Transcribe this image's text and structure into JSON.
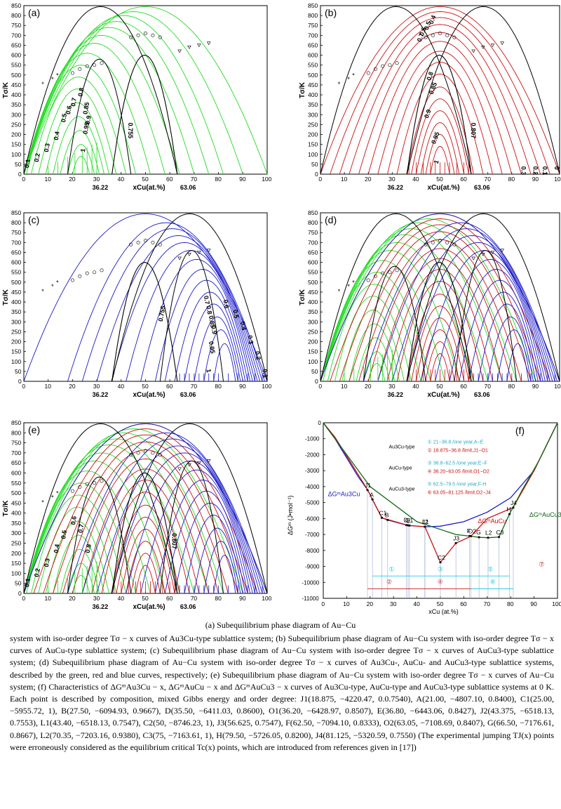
{
  "figure": {
    "panels": [
      {
        "label": "(a)",
        "ylabel": "Tσ/K"
      },
      {
        "label": "(b)",
        "ylabel": "Tσ/K"
      },
      {
        "label": "(c)",
        "ylabel": "Tσ/K"
      },
      {
        "label": "(d)",
        "ylabel": "Tσ/K"
      },
      {
        "label": "(e)",
        "ylabel": "Tσ/K"
      }
    ],
    "xlabel": "xCu(at.%)",
    "mark_labels": [
      "36.22",
      "63.06"
    ],
    "x_ticks": [
      "0",
      "10",
      "20",
      "30",
      "40",
      "50",
      "60",
      "70",
      "80",
      "90",
      "100"
    ],
    "y_ticks": [
      "0",
      "50",
      "100",
      "150",
      "200",
      "250",
      "300",
      "350",
      "400",
      "450",
      "500",
      "550",
      "600",
      "650",
      "700",
      "750",
      "800",
      "850"
    ],
    "colors": {
      "au3cu": "#22dd22",
      "aucu": "#cc1111",
      "aucu3": "#1a1acc",
      "black": "#000000"
    },
    "iso_labels_a": [
      "0.1",
      "0.2",
      "0.3",
      "0.4",
      "0.5",
      "0.6",
      "0.7",
      "0.8",
      "0.85",
      "0.9",
      "0.95",
      "1",
      "0.755"
    ],
    "iso_labels_b": [
      "0.4",
      "0.5",
      "0.6",
      "0.7",
      "0.8",
      "0.85",
      "0.9",
      "0.95",
      "1",
      "0.807",
      "0.3",
      "0.2",
      "0.1",
      "0"
    ],
    "iso_labels_c": [
      "0.755",
      "0.7",
      "0.8",
      "0.85",
      "0.9",
      "0.95",
      "1",
      "0.6",
      "0.5",
      "0.4",
      "0.3",
      "0.2",
      "0.1"
    ],
    "panel_f": {
      "label": "(f)",
      "ylabel": "ΔGᵐ (J•mol⁻¹)",
      "xlabel": "xCu (at.%)",
      "y_ticks": [
        "0",
        "-1000",
        "-2000",
        "-3000",
        "-4000",
        "-5000",
        "-6000",
        "-7000",
        "-8000",
        "-9000",
        "-10000",
        "-11000"
      ],
      "x_ticks": [
        "0",
        "10",
        "20",
        "30",
        "40",
        "50",
        "60",
        "70",
        "80",
        "90",
        "100"
      ],
      "curve_labels": [
        "ΔGᵐAu3Cu",
        "ΔGᵐAuCu",
        "ΔGᵐAuCu3"
      ],
      "legend": [
        {
          "type": "Au3Cu-type",
          "items": [
            "① 21−36.8 /one year,A−E",
            "② 18.875−36.8 /limit,J1−O1"
          ]
        },
        {
          "type": "AuCu-type",
          "items": [
            "③ 36.8−62.5 /one year,E−F",
            "④ 36.20−63.05 /limit,O1−O2"
          ]
        },
        {
          "type": "AuCu3-type",
          "items": [
            "⑤ 62.5−79.5 /one year,F-H",
            "⑥ 63.05−81.125 /limit,O2−J4"
          ]
        }
      ],
      "points": [
        {
          "name": "J1",
          "x": 18.875,
          "y": -4220.47
        },
        {
          "name": "A",
          "x": 21.0,
          "y": -4807.1
        },
        {
          "name": "C1",
          "x": 25.0,
          "y": -5955.72
        },
        {
          "name": "B",
          "x": 27.5,
          "y": -6094.93
        },
        {
          "name": "D",
          "x": 35.5,
          "y": -6411.03
        },
        {
          "name": "O1",
          "x": 36.2,
          "y": -6428.97
        },
        {
          "name": "E",
          "x": 36.8,
          "y": -6443.06
        },
        {
          "name": "J2",
          "x": 43.375,
          "y": -6518.13
        },
        {
          "name": "L1",
          "x": 43.4,
          "y": -6518.13
        },
        {
          "name": "C2",
          "x": 50.0,
          "y": -8746.23
        },
        {
          "name": "J3",
          "x": 56.625,
          "y": -7547.0
        },
        {
          "name": "F",
          "x": 62.5,
          "y": -7094.1
        },
        {
          "name": "O2",
          "x": 63.05,
          "y": -7108.69
        },
        {
          "name": "G",
          "x": 66.5,
          "y": -7176.61
        },
        {
          "name": "L2",
          "x": 70.35,
          "y": -7203.16
        },
        {
          "name": "C3",
          "x": 75.0,
          "y": -7163.61
        },
        {
          "name": "H",
          "x": 79.5,
          "y": -5726.05
        },
        {
          "name": "J4",
          "x": 81.125,
          "y": -5320.59
        }
      ],
      "range_labels": [
        "①",
        "②",
        "③",
        "④",
        "⑤",
        "⑥",
        "⑦"
      ]
    }
  },
  "caption": {
    "title": "(a) Subequilibrium phase diagram of Au−Cu",
    "body": "system with iso-order degree Tσ − x curves of Au3Cu-type sublattice system; (b) Subequilibrium phase diagram of Au−Cu system with iso-order degree Tσ − x curves of AuCu-type sublattice system; (c) Subequilibrium phase diagram of Au−Cu system with iso-order degree Tσ − x curves of AuCu3-type sublattice system; (d) Subequilibrium phase diagram of Au−Cu system with iso-order degree Tσ − x curves of Au3Cu-, AuCu- and AuCu3-type sublattice systems, described by the green, red and blue curves, respectively; (e) Subequilibrium phase diagram of Au−Cu system with iso-order degree Tσ − x curves of Au−Cu system; (f) Characteristics of ΔGᵐAu3Cu − x, ΔGᵐAuCu − x and ΔGᵐAuCu3 − x curves of Au3Cu-type, AuCu-type and AuCu3-type sublattice systems at 0 K. Each point is described by composition, mixed Gibbs energy and order degree: J1(18.875, −4220.47, 0.0.7540), A(21.00, −4807.10, 0.8400), C1(25.00, −5955.72, 1), B(27.50, −6094.93, 0.9667), D(35.50, −6411.03, 0.8600), O1(36.20, −6428.97, 0.8507), E(36.80, −6443.06, 0.8427), J2(43.375, −6518.13, 0.7553), L1(43.40, −6518.13, 0.7547), C2(50, −8746.23, 1), J3(56.625, 0.7547), F(62.50, −7094.10, 0.8333), O2(63.05, −7108.69, 0.8407), G(66.50, −7176.61, 0.8667), L2(70.35, −7203.16, 0.9380), C3(75, −7163.61, 1), H(79.50, −5726.05, 0.8200), J4(81.125, −5320.59, 0.7550) (The experimental jumping TJ(x) points were erroneously considered as the equilibrium critical Tc(x) points, which are introduced from references given in [17])"
  }
}
